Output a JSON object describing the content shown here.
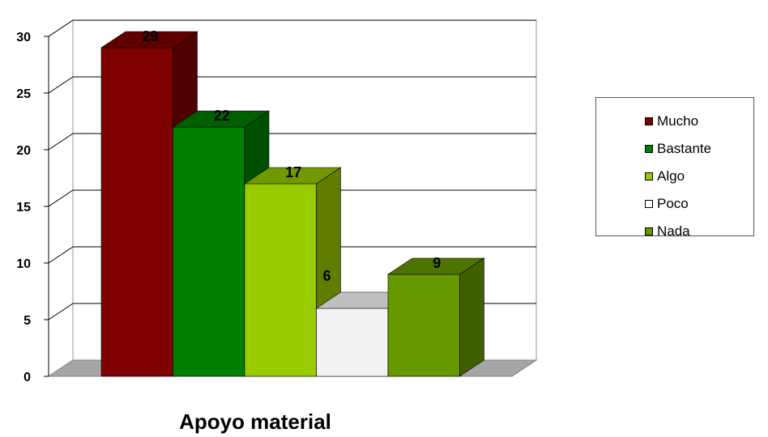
{
  "chart_data": {
    "type": "bar",
    "title": "",
    "xlabel": "Apoyo material",
    "ylabel": "",
    "ylim": [
      0,
      30
    ],
    "yticks": [
      0,
      5,
      10,
      15,
      20,
      25,
      30
    ],
    "grid": true,
    "style": "3d-column",
    "legend_position": "right",
    "categories": [
      "Mucho",
      "Bastante",
      "Algo",
      "Poco",
      "Nada"
    ],
    "values": [
      29,
      22,
      17,
      6,
      9
    ],
    "data_labels": [
      "29",
      "22",
      "17",
      "6",
      "9"
    ],
    "colors": [
      "#7f0000",
      "#008000",
      "#99cc00",
      "#f2f2f2",
      "#669900"
    ]
  }
}
